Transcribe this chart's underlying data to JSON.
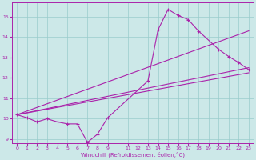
{
  "xlabel": "Windchill (Refroidissement éolien,°C)",
  "bg_color": "#cce8e8",
  "line_color": "#aa22aa",
  "grid_color": "#99cccc",
  "xlim": [
    -0.5,
    23.5
  ],
  "ylim": [
    8.8,
    15.7
  ],
  "yticks": [
    9,
    10,
    11,
    12,
    13,
    14,
    15
  ],
  "xticks": [
    0,
    1,
    2,
    3,
    4,
    5,
    6,
    7,
    8,
    9,
    11,
    12,
    13,
    14,
    15,
    16,
    17,
    18,
    19,
    20,
    21,
    22,
    23
  ],
  "line1_x": [
    0,
    1,
    2,
    3,
    4,
    5,
    6,
    7,
    8,
    9,
    13,
    14,
    15,
    16,
    17,
    18,
    20,
    21,
    22,
    23
  ],
  "line1_y": [
    10.2,
    10.05,
    9.85,
    10.0,
    9.85,
    9.75,
    9.75,
    8.85,
    9.25,
    10.05,
    11.85,
    14.35,
    15.35,
    15.05,
    14.85,
    14.3,
    13.4,
    13.05,
    12.75,
    12.4
  ],
  "line2_x": [
    0,
    23
  ],
  "line2_y": [
    10.2,
    12.25
  ],
  "line3_x": [
    0,
    23
  ],
  "line3_y": [
    10.2,
    12.5
  ],
  "line4_x": [
    0,
    23
  ],
  "line4_y": [
    10.2,
    14.3
  ]
}
